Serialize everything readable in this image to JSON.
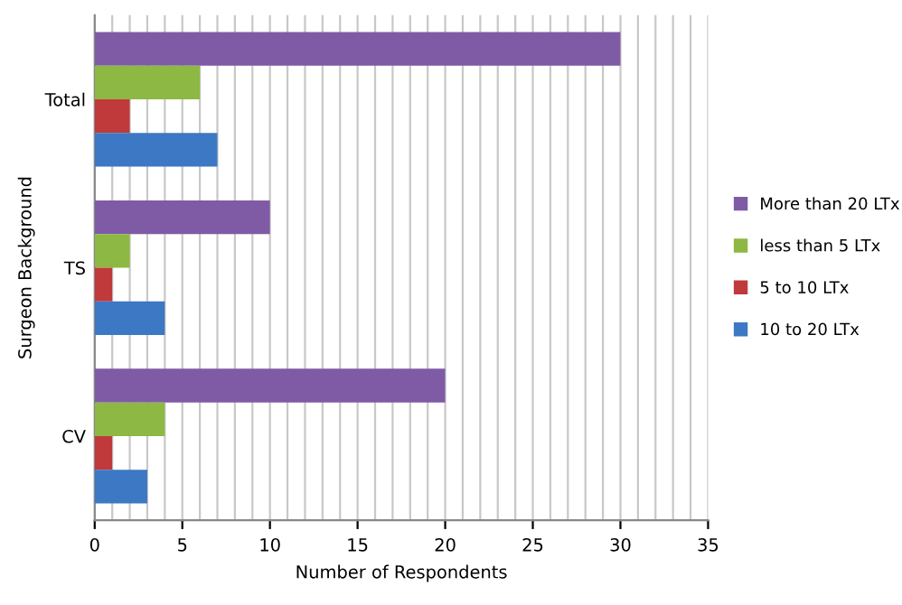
{
  "chart_data": {
    "type": "bar",
    "orientation": "horizontal",
    "xlabel": "Number of Respondents",
    "ylabel": "Surgeon Background",
    "categories": [
      "Total",
      "TS",
      "CV"
    ],
    "series": [
      {
        "name": "More than 20 LTx",
        "color": "#7f5ba6",
        "values": [
          30,
          10,
          20
        ]
      },
      {
        "name": "less than 5 LTx",
        "color": "#8db843",
        "values": [
          6,
          2,
          4
        ]
      },
      {
        "name": "5 to 10 LTx",
        "color": "#c0393b",
        "values": [
          2,
          1,
          1
        ]
      },
      {
        "name": "10 to 20 LTx",
        "color": "#3c78c3",
        "values": [
          7,
          4,
          3
        ]
      }
    ],
    "xlim": [
      0,
      35
    ],
    "xticks": [
      0,
      {
        "value": 1,
        "label": null
      },
      {
        "value": 2,
        "label": null
      },
      {
        "value": 3,
        "label": null
      },
      {
        "value": 4,
        "label": null
      },
      5,
      {
        "value": 6,
        "label": null
      },
      {
        "value": 7,
        "label": null
      },
      {
        "value": 8,
        "label": null
      },
      {
        "value": 9,
        "label": null
      },
      10,
      {
        "value": 11,
        "label": null
      },
      {
        "value": 12,
        "label": null
      },
      {
        "value": 13,
        "label": null
      },
      {
        "value": 14,
        "label": null
      },
      15,
      {
        "value": 16,
        "label": null
      },
      {
        "value": 17,
        "label": null
      },
      {
        "value": 18,
        "label": null
      },
      {
        "value": 19,
        "label": null
      },
      20,
      {
        "value": 21,
        "label": null
      },
      {
        "value": 22,
        "label": null
      },
      {
        "value": 23,
        "label": null
      },
      {
        "value": 24,
        "label": null
      },
      25,
      {
        "value": 26,
        "label": null
      },
      {
        "value": 27,
        "label": null
      },
      {
        "value": 28,
        "label": null
      },
      {
        "value": 29,
        "label": null
      },
      30,
      {
        "value": 31,
        "label": null
      },
      {
        "value": 32,
        "label": null
      },
      {
        "value": 33,
        "label": null
      },
      {
        "value": 34,
        "label": null
      },
      35
    ],
    "grid": "x",
    "legend": "right"
  }
}
